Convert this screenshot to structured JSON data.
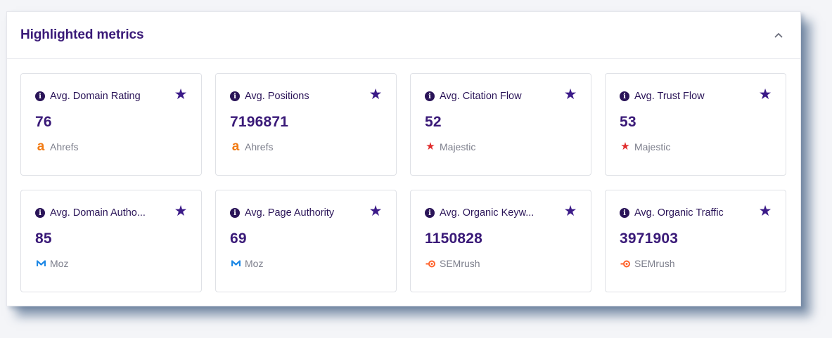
{
  "panel": {
    "title": "Highlighted metrics",
    "collapse_icon": "chevron-up-icon"
  },
  "colors": {
    "primary": "#3a1a78",
    "star": "#3b1a88",
    "ahrefs": "#f27b13",
    "majestic": "#e02d2d",
    "moz": "#1e88e5",
    "semrush": "#ff642d"
  },
  "cards": [
    {
      "label": "Avg. Domain Rating",
      "value": "76",
      "source": "Ahrefs",
      "source_icon": "ahrefs-icon"
    },
    {
      "label": "Avg. Positions",
      "value": "7196871",
      "source": "Ahrefs",
      "source_icon": "ahrefs-icon"
    },
    {
      "label": "Avg. Citation Flow",
      "value": "52",
      "source": "Majestic",
      "source_icon": "majestic-icon"
    },
    {
      "label": "Avg. Trust Flow",
      "value": "53",
      "source": "Majestic",
      "source_icon": "majestic-icon"
    },
    {
      "label": "Avg. Domain Autho...",
      "value": "85",
      "source": "Moz",
      "source_icon": "moz-icon"
    },
    {
      "label": "Avg. Page Authority",
      "value": "69",
      "source": "Moz",
      "source_icon": "moz-icon"
    },
    {
      "label": "Avg. Organic Keyw...",
      "value": "1150828",
      "source": "SEMrush",
      "source_icon": "semrush-icon"
    },
    {
      "label": "Avg. Organic Traffic",
      "value": "3971903",
      "source": "SEMrush",
      "source_icon": "semrush-icon"
    }
  ]
}
